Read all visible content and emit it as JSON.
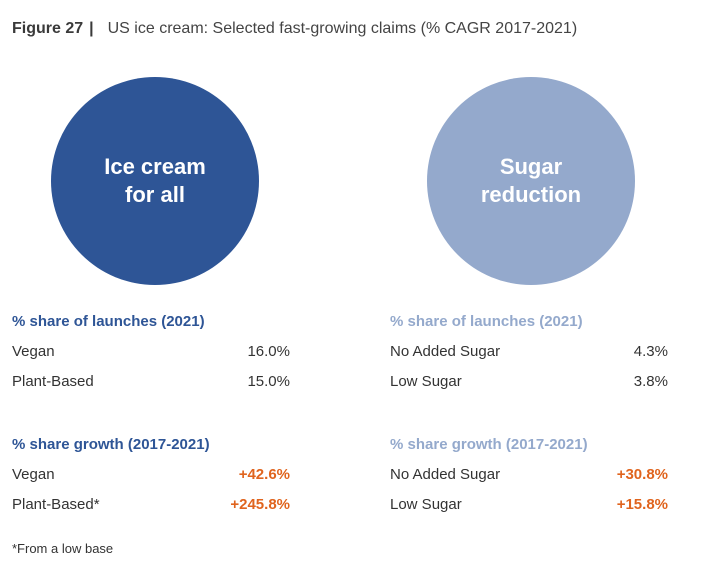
{
  "figure": {
    "label": "Figure 27",
    "separator": "|",
    "title": "US ice cream: Selected fast-growing claims (% CAGR 2017-2021)"
  },
  "colors": {
    "dark_blue": "#2e5596",
    "light_blue": "#94a9cc",
    "growth_orange": "#e0641e"
  },
  "left": {
    "circle_line1": "Ice cream",
    "circle_line2": "for all",
    "share_title": "% share of launches (2021)",
    "share_rows": [
      {
        "label": "Vegan",
        "value": "16.0%"
      },
      {
        "label": "Plant-Based",
        "value": "15.0%"
      }
    ],
    "growth_title": "% share growth (2017-2021)",
    "growth_rows": [
      {
        "label": "Vegan",
        "value": "+42.6%"
      },
      {
        "label": "Plant-Based*",
        "value": "+245.8%"
      }
    ]
  },
  "right": {
    "circle_line1": "Sugar",
    "circle_line2": "reduction",
    "share_title": "% share of launches (2021)",
    "share_rows": [
      {
        "label": "No Added Sugar",
        "value": "4.3%"
      },
      {
        "label": "Low Sugar",
        "value": "3.8%"
      }
    ],
    "growth_title": "% share growth (2017-2021)",
    "growth_rows": [
      {
        "label": "No Added Sugar",
        "value": "+30.8%"
      },
      {
        "label": "Low Sugar",
        "value": "+15.8%"
      }
    ]
  },
  "footnote": "*From a low base"
}
